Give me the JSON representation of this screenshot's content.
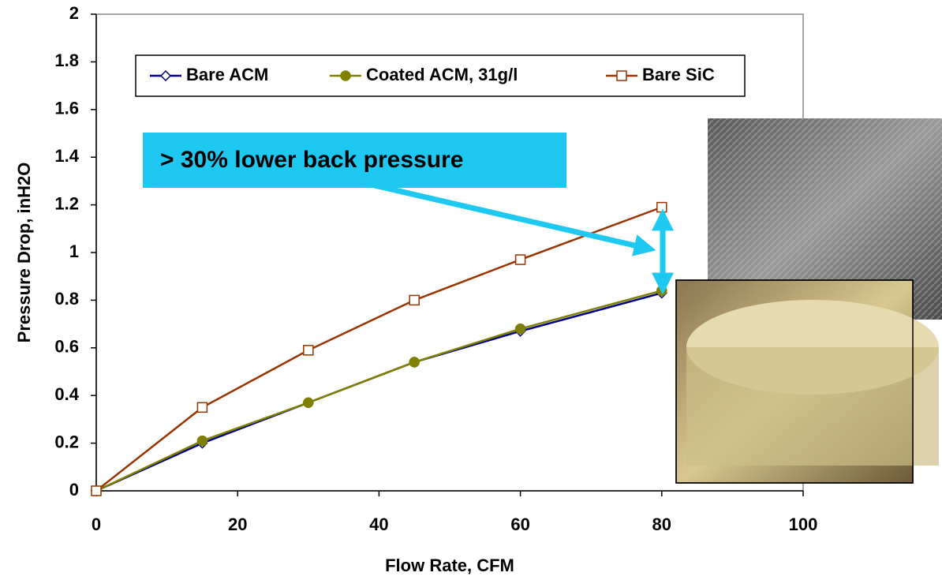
{
  "chart_data": {
    "type": "line",
    "x_label": "Flow Rate, CFM",
    "y_label": "Pressure Drop, inH2O",
    "annotation": "> 30% lower back pressure",
    "x": [
      0,
      15,
      30,
      45,
      60,
      80
    ],
    "series": [
      {
        "name": "Bare ACM",
        "color": "#000080",
        "marker": "diamond",
        "values": [
          0,
          0.2,
          0.37,
          0.54,
          0.67,
          0.83
        ]
      },
      {
        "name": "Coated ACM, 31g/l",
        "color": "#808000",
        "marker": "circle",
        "values": [
          0,
          0.21,
          0.37,
          0.54,
          0.68,
          0.84
        ]
      },
      {
        "name": "Bare SiC",
        "color": "#993300",
        "marker": "square",
        "values": [
          0,
          0.35,
          0.59,
          0.8,
          0.97,
          1.19
        ]
      }
    ],
    "xlim": [
      0,
      100
    ],
    "xticks": [
      0,
      20,
      40,
      60,
      80,
      100
    ],
    "ylim": [
      0,
      2
    ],
    "yticks": [
      0,
      0.2,
      0.4,
      0.6,
      0.8,
      1,
      1.2,
      1.4,
      1.6,
      1.8,
      2
    ],
    "grid": false
  }
}
